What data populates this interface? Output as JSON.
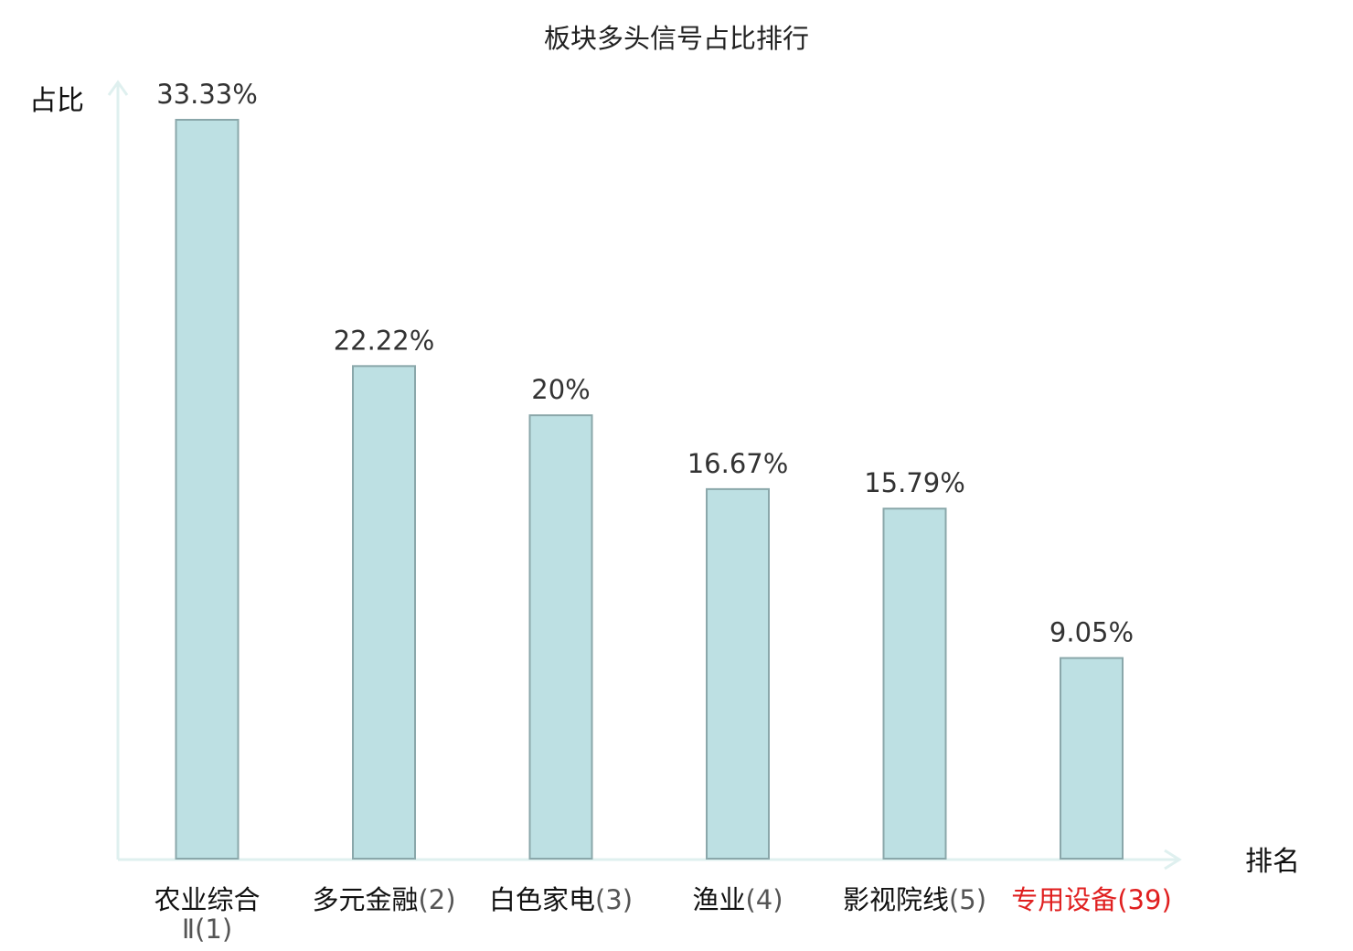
{
  "chart_data": {
    "type": "bar",
    "title": "板块多头信号占比排行",
    "ylabel": "占比",
    "xlabel": "排名",
    "ylim": [
      0,
      35
    ],
    "grid": false,
    "categories": [
      {
        "name": "农业综合Ⅱ",
        "rank": "(1)",
        "highlight": false
      },
      {
        "name": "多元金融",
        "rank": "(2)",
        "highlight": false
      },
      {
        "name": "白色家电",
        "rank": "(3)",
        "highlight": false
      },
      {
        "name": "渔业",
        "rank": "(4)",
        "highlight": false
      },
      {
        "name": "影视院线",
        "rank": "(5)",
        "highlight": false
      },
      {
        "name": "专用设备",
        "rank": "(39)",
        "highlight": true
      }
    ],
    "values": [
      33.33,
      22.22,
      20,
      16.67,
      15.79,
      9.05
    ],
    "value_labels": [
      "33.33%",
      "22.22%",
      "20%",
      "16.67%",
      "15.79%",
      "9.05%"
    ],
    "colors": {
      "bar_fill": "#bde0e3",
      "bar_stroke": "#8aa7aa",
      "axis": "#dff0ef",
      "category_text": "#111111",
      "rank_text": "#555555",
      "highlight_text": "#e02020"
    }
  }
}
